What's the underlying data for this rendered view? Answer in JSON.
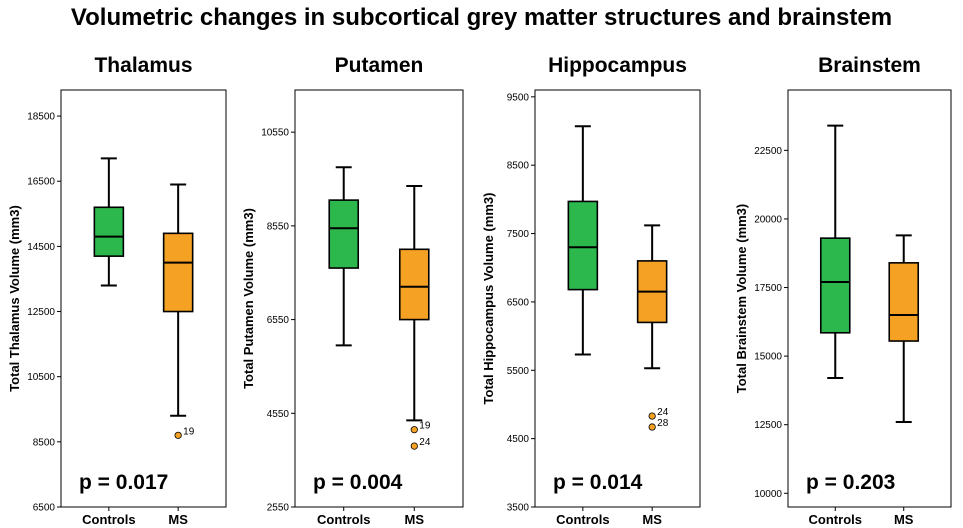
{
  "figure_title": "Volumetric changes in subcortical grey matter structures and brainstem",
  "colors": {
    "controls": "#2db84d",
    "ms": "#f5a123",
    "outlier": "#f5a123",
    "line": "#000000"
  },
  "chart_data": [
    {
      "type": "box",
      "title": "Thalamus",
      "ylabel": "Total Thalamus Volume (mm3)",
      "categories": [
        "Controls",
        "MS"
      ],
      "ylim": [
        6500,
        19300
      ],
      "yticks": [
        6500,
        8500,
        10500,
        12500,
        14500,
        16500,
        18500
      ],
      "p_value": "p = 0.017",
      "boxes": [
        {
          "group": "Controls",
          "min": 13300,
          "q1": 14200,
          "median": 14800,
          "q3": 15700,
          "max": 17200
        },
        {
          "group": "MS",
          "min": 9300,
          "q1": 12500,
          "median": 14000,
          "q3": 14900,
          "max": 16400
        }
      ],
      "outliers": [
        {
          "group": "MS",
          "value": 8700,
          "label": "19"
        }
      ]
    },
    {
      "type": "box",
      "title": "Putamen",
      "ylabel": "Total Putamen Volume (mm3)",
      "categories": [
        "Controls",
        "MS"
      ],
      "ylim": [
        2550,
        11450
      ],
      "yticks": [
        2550,
        4550,
        6550,
        8550,
        10550
      ],
      "p_value": "p = 0.004",
      "boxes": [
        {
          "group": "Controls",
          "min": 6000,
          "q1": 7650,
          "median": 8500,
          "q3": 9100,
          "max": 9800
        },
        {
          "group": "MS",
          "min": 4400,
          "q1": 6550,
          "median": 7250,
          "q3": 8050,
          "max": 9400
        }
      ],
      "outliers": [
        {
          "group": "MS",
          "value": 4200,
          "label": "19"
        },
        {
          "group": "MS",
          "value": 3850,
          "label": "24"
        }
      ]
    },
    {
      "type": "box",
      "title": "Hippocampus",
      "ylabel": "Total Hippocampus Volume (mm3)",
      "categories": [
        "Controls",
        "MS"
      ],
      "ylim": [
        3500,
        9600
      ],
      "yticks": [
        3500,
        4500,
        5500,
        6500,
        7500,
        8500,
        9500
      ],
      "p_value": "p = 0.014",
      "boxes": [
        {
          "group": "Controls",
          "min": 5730,
          "q1": 6680,
          "median": 7300,
          "q3": 7970,
          "max": 9070
        },
        {
          "group": "MS",
          "min": 5530,
          "q1": 6200,
          "median": 6650,
          "q3": 7100,
          "max": 7620
        }
      ],
      "outliers": [
        {
          "group": "MS",
          "value": 4830,
          "label": "24"
        },
        {
          "group": "MS",
          "value": 4670,
          "label": "28"
        }
      ]
    },
    {
      "type": "box",
      "title": "Brainstem",
      "ylabel": "Total Brainstem Volume (mm3)",
      "categories": [
        "Controls",
        "MS"
      ],
      "ylim": [
        9500,
        24700
      ],
      "yticks": [
        10000,
        12500,
        15000,
        17500,
        20000,
        22500
      ],
      "p_value": "p = 0.203",
      "boxes": [
        {
          "group": "Controls",
          "min": 14200,
          "q1": 15850,
          "median": 17700,
          "q3": 19300,
          "max": 23400
        },
        {
          "group": "MS",
          "min": 12600,
          "q1": 15550,
          "median": 16500,
          "q3": 18400,
          "max": 19400
        }
      ],
      "outliers": []
    }
  ]
}
